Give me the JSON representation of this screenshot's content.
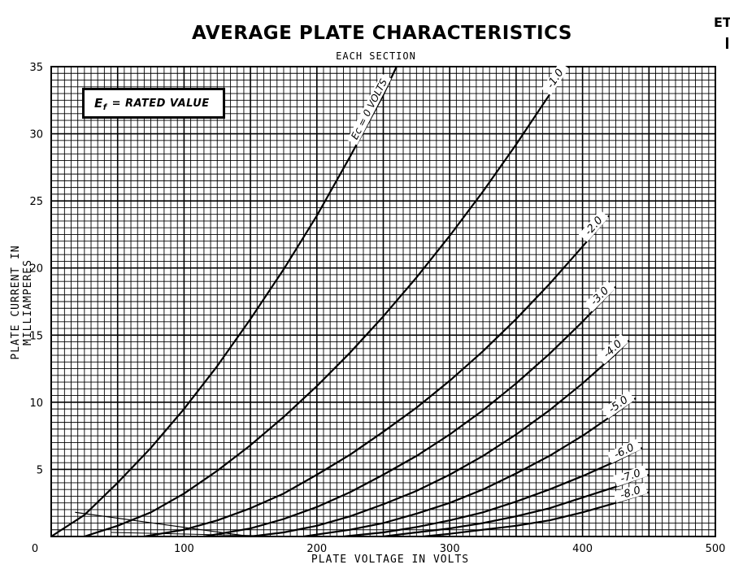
{
  "title": "AVERAGE PLATE CHARACTERISTICS",
  "subtitle": "EACH SECTION",
  "corner_mark": "ET",
  "legend_box": {
    "symbol": "E",
    "subscript": "f",
    "text": "= RATED VALUE"
  },
  "chart_data": {
    "type": "line",
    "title": "AVERAGE PLATE CHARACTERISTICS",
    "subtitle": "EACH SECTION",
    "xlabel": "PLATE VOLTAGE IN VOLTS",
    "ylabel": "PLATE CURRENT IN MILLIAMPERES",
    "xlim": [
      0,
      500
    ],
    "ylim": [
      0,
      35
    ],
    "xticks": [
      "0",
      "100",
      "200",
      "300",
      "400",
      "500"
    ],
    "yticks": [
      "5",
      "10",
      "15",
      "20",
      "25",
      "30",
      "35"
    ],
    "grid": true,
    "series": [
      {
        "name": "Ec = 0 VOLTS",
        "x": [
          0,
          25,
          50,
          75,
          100,
          125,
          150,
          175,
          200,
          225,
          250,
          260
        ],
        "y": [
          0,
          1.6,
          4.0,
          6.6,
          9.5,
          12.7,
          16.2,
          19.9,
          23.9,
          28.3,
          32.9,
          35.0
        ]
      },
      {
        "name": "-1.0",
        "x": [
          25,
          50,
          75,
          100,
          125,
          150,
          175,
          200,
          225,
          250,
          275,
          300,
          325,
          350,
          375,
          390
        ],
        "y": [
          0,
          0.8,
          1.8,
          3.2,
          4.9,
          6.8,
          8.9,
          11.2,
          13.7,
          16.4,
          19.3,
          22.4,
          25.7,
          29.2,
          32.9,
          35.0
        ]
      },
      {
        "name": "-2.0",
        "x": [
          70,
          100,
          125,
          150,
          175,
          200,
          225,
          250,
          275,
          300,
          325,
          350,
          375,
          400,
          420
        ],
        "y": [
          0,
          0.5,
          1.2,
          2.1,
          3.2,
          4.6,
          6.1,
          7.8,
          9.6,
          11.6,
          13.8,
          16.2,
          18.8,
          21.6,
          23.9
        ]
      },
      {
        "name": "-3.0",
        "x": [
          115,
          150,
          175,
          200,
          225,
          250,
          275,
          300,
          325,
          350,
          375,
          400,
          425
        ],
        "y": [
          0,
          0.6,
          1.3,
          2.2,
          3.3,
          4.6,
          6.0,
          7.6,
          9.4,
          11.4,
          13.6,
          16.0,
          18.6
        ]
      },
      {
        "name": "-4.0",
        "x": [
          150,
          175,
          200,
          225,
          250,
          275,
          300,
          325,
          350,
          375,
          400,
          425,
          435
        ],
        "y": [
          0,
          0.3,
          0.8,
          1.5,
          2.4,
          3.4,
          4.6,
          6.0,
          7.6,
          9.4,
          11.4,
          13.6,
          14.6
        ]
      },
      {
        "name": "-5.0",
        "x": [
          190,
          225,
          250,
          275,
          300,
          325,
          350,
          375,
          400,
          425,
          440
        ],
        "y": [
          0,
          0.5,
          1.0,
          1.7,
          2.5,
          3.5,
          4.7,
          6.0,
          7.5,
          9.2,
          10.3
        ]
      },
      {
        "name": "-6.0",
        "x": [
          220,
          250,
          275,
          300,
          325,
          350,
          375,
          400,
          425,
          445
        ],
        "y": [
          0,
          0.3,
          0.7,
          1.2,
          1.8,
          2.6,
          3.5,
          4.5,
          5.6,
          6.6
        ]
      },
      {
        "name": "-7.0",
        "x": [
          250,
          275,
          300,
          325,
          350,
          375,
          400,
          425,
          450
        ],
        "y": [
          0,
          0.3,
          0.6,
          1.0,
          1.5,
          2.1,
          2.9,
          3.7,
          4.6
        ]
      },
      {
        "name": "-8.0",
        "x": [
          280,
          300,
          325,
          350,
          375,
          400,
          425,
          450
        ],
        "y": [
          0,
          0.2,
          0.5,
          0.8,
          1.2,
          1.8,
          2.5,
          3.3
        ]
      }
    ],
    "annotations": [
      "Ec = 0 VOLTS",
      "-1.0",
      "-2.0",
      "-3.0",
      "-4.0",
      "-5.0",
      "-6.0",
      "-7.0",
      "-8.0"
    ]
  }
}
